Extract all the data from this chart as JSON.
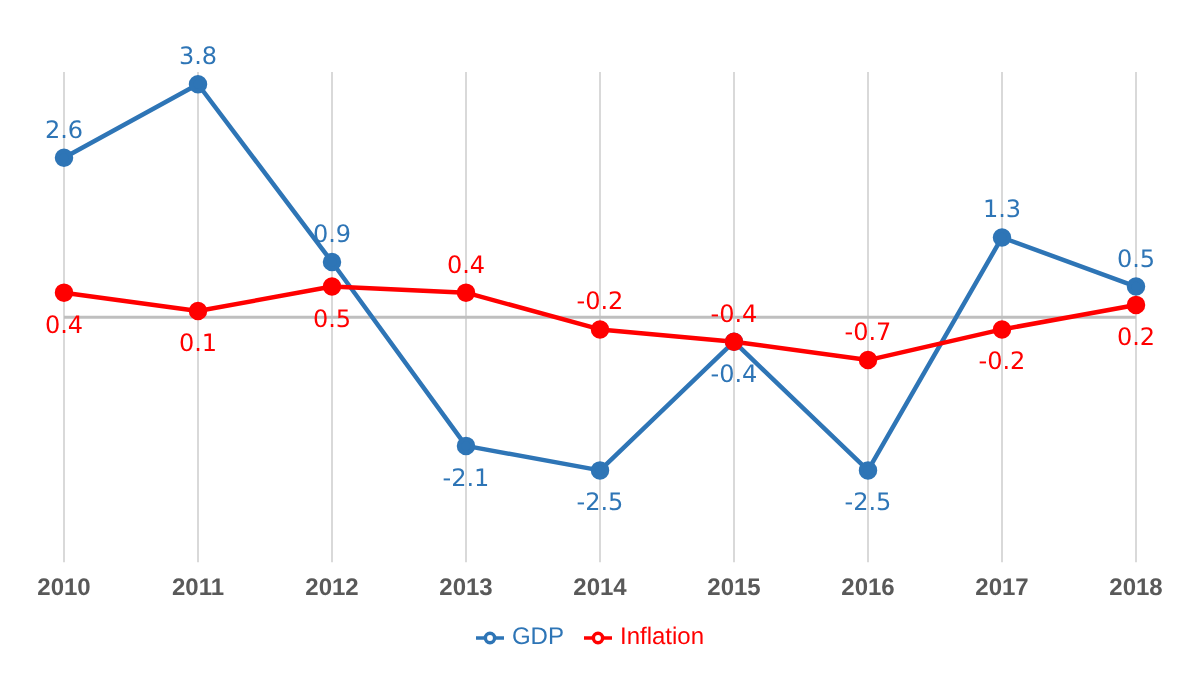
{
  "chart_data": {
    "type": "line",
    "categories": [
      "2010",
      "2011",
      "2012",
      "2013",
      "2014",
      "2015",
      "2016",
      "2017",
      "2018"
    ],
    "series": [
      {
        "name": "GDP",
        "color": "#2e75b6",
        "values": [
          2.6,
          3.8,
          0.9,
          -2.1,
          -2.5,
          -0.4,
          -2.5,
          1.3,
          0.5
        ]
      },
      {
        "name": "Inflation",
        "color": "#ff0000",
        "values": [
          0.4,
          0.1,
          0.5,
          0.4,
          -0.2,
          -0.4,
          -0.7,
          -0.2,
          0.2
        ]
      }
    ],
    "data_labels": true,
    "grid": "x",
    "legend": "bottom",
    "marker": "circle",
    "line_style": "solid",
    "tick_labels": "x",
    "ref_lines": [
      {
        "axis": "y",
        "value": 0,
        "color": "#bfbfbf"
      }
    ]
  }
}
